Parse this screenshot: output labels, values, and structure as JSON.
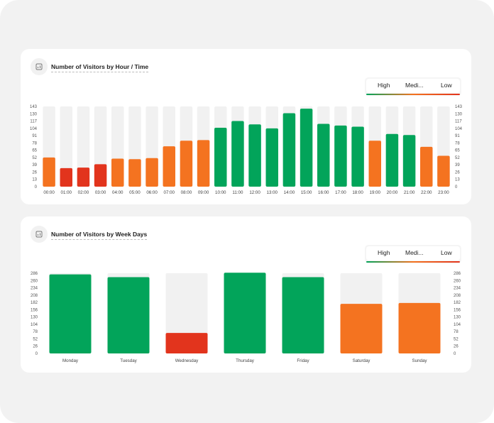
{
  "colors": {
    "high": "#02a45a",
    "medium": "#f47320",
    "low": "#e2341d",
    "track": "#f1f1f1"
  },
  "legend": {
    "high": "High",
    "medium": "Medi...",
    "low": "Low"
  },
  "chart_data": [
    {
      "type": "bar",
      "title": "Number of Visitors by Hour / Time",
      "categories": [
        "00:00",
        "01:00",
        "02:00",
        "03:00",
        "04:00",
        "05:00",
        "06:00",
        "07:00",
        "08:00",
        "09:00",
        "10:00",
        "11:00",
        "12:00",
        "13:00",
        "14:00",
        "15:00",
        "16:00",
        "17:00",
        "18:00",
        "19:00",
        "20:00",
        "21:00",
        "22:00",
        "23:00"
      ],
      "values": [
        52,
        33,
        34,
        40,
        50,
        49,
        51,
        72,
        82,
        83,
        105,
        117,
        111,
        104,
        131,
        139,
        112,
        109,
        107,
        82,
        94,
        92,
        71,
        55
      ],
      "levels": [
        "medium",
        "low",
        "low",
        "low",
        "medium",
        "medium",
        "medium",
        "medium",
        "medium",
        "medium",
        "high",
        "high",
        "high",
        "high",
        "high",
        "high",
        "high",
        "high",
        "high",
        "medium",
        "high",
        "high",
        "medium",
        "medium"
      ],
      "ylim": [
        0,
        143
      ],
      "yticks": [
        0,
        13,
        26,
        39,
        52,
        65,
        78,
        91,
        104,
        117,
        130,
        143
      ],
      "grid": false,
      "legend_position": "top-right"
    },
    {
      "type": "bar",
      "title": "Number of Visitors by Week Days",
      "categories": [
        "Monday",
        "Tuesday",
        "Wednesday",
        "Thursday",
        "Friday",
        "Saturday",
        "Sunday"
      ],
      "values": [
        282,
        272,
        73,
        288,
        272,
        177,
        180
      ],
      "levels": [
        "high",
        "high",
        "low",
        "high",
        "high",
        "medium",
        "medium"
      ],
      "ylim": [
        0,
        286
      ],
      "yticks": [
        0,
        26,
        52,
        78,
        104,
        130,
        156,
        182,
        208,
        234,
        260,
        286
      ],
      "grid": false,
      "legend_position": "top-right"
    }
  ]
}
